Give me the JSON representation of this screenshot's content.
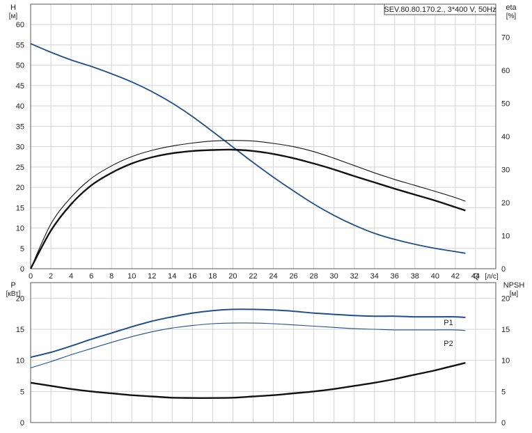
{
  "chart_data": [
    {
      "type": "line",
      "title": "SEV.80.80.170.2., 3*400 V, 50Hz",
      "xlabel": "Q",
      "xunit": "[л/с]",
      "ylabel": "H",
      "yunit": "[м]",
      "y2label": "eta",
      "y2unit": "[%]",
      "xlim": [
        0,
        46
      ],
      "ylim": [
        0,
        65
      ],
      "y2lim": [
        0,
        80
      ],
      "xticks": [
        0,
        2,
        4,
        6,
        8,
        10,
        12,
        14,
        16,
        18,
        20,
        22,
        24,
        26,
        28,
        30,
        32,
        34,
        36,
        38,
        40,
        42,
        44
      ],
      "yticks": [
        0,
        5,
        10,
        15,
        20,
        25,
        30,
        35,
        40,
        45,
        50,
        55,
        60
      ],
      "y2ticks": [
        0,
        10,
        20,
        30,
        40,
        50,
        60,
        70
      ],
      "grid": true,
      "series": [
        {
          "color": "#1f4e8c",
          "axis": "left",
          "x": [
            0,
            2,
            4,
            6,
            8,
            10,
            12,
            14,
            16,
            18,
            20,
            22,
            24,
            26,
            28,
            30,
            32,
            34,
            36,
            38,
            40,
            42,
            43
          ],
          "y": [
            55.3,
            53.2,
            51.3,
            49.7,
            47.9,
            45.9,
            43.5,
            40.7,
            37.4,
            33.7,
            29.9,
            26.1,
            22.5,
            19.1,
            15.9,
            13.1,
            10.7,
            8.7,
            7.2,
            6.0,
            5.0,
            4.2,
            3.8
          ]
        },
        {
          "color": "#111111",
          "axis": "right",
          "x": [
            0,
            2,
            4,
            6,
            8,
            10,
            12,
            14,
            16,
            18,
            20,
            22,
            24,
            26,
            28,
            30,
            32,
            34,
            36,
            38,
            40,
            42,
            43
          ],
          "y": [
            0,
            11.5,
            19.5,
            25.2,
            29.0,
            31.8,
            33.7,
            34.9,
            35.6,
            35.9,
            36.0,
            35.6,
            34.7,
            33.4,
            31.8,
            30.0,
            28.0,
            26.1,
            24.2,
            22.4,
            20.6,
            18.6,
            17.6
          ]
        },
        {
          "color": "#111111",
          "axis": "right",
          "x": [
            0,
            2,
            4,
            6,
            8,
            10,
            12,
            14,
            16,
            18,
            20,
            22,
            24,
            26,
            28,
            30,
            32,
            34,
            36,
            38,
            40,
            42,
            43
          ],
          "y": [
            0,
            13.5,
            21.6,
            27.3,
            31.1,
            33.9,
            35.8,
            37.1,
            38.0,
            38.6,
            38.8,
            38.6,
            37.9,
            36.9,
            35.4,
            33.4,
            31.2,
            29.0,
            27.0,
            25.2,
            23.4,
            21.5,
            20.4
          ]
        }
      ]
    },
    {
      "type": "line",
      "xlim": [
        0,
        46
      ],
      "ylabel": "P",
      "yunit": "[кВт]",
      "y2label": "NPSH",
      "y2unit": "[м]",
      "ylim": [
        0,
        22.5
      ],
      "y2lim": [
        0,
        22.5
      ],
      "yticks": [
        0,
        5,
        10,
        15,
        20
      ],
      "y2ticks": [
        0,
        5,
        10,
        15,
        20
      ],
      "grid": true,
      "series": [
        {
          "name": "P1",
          "color": "#1f4e8c",
          "axis": "left",
          "x": [
            0,
            2,
            4,
            6,
            8,
            10,
            12,
            14,
            16,
            18,
            20,
            22,
            24,
            26,
            28,
            30,
            32,
            34,
            36,
            38,
            40,
            42,
            43
          ],
          "y": [
            10.5,
            11.3,
            12.3,
            13.4,
            14.4,
            15.4,
            16.3,
            17.0,
            17.6,
            18.0,
            18.2,
            18.2,
            18.1,
            17.9,
            17.6,
            17.4,
            17.2,
            17.1,
            17.1,
            17.0,
            17.0,
            17.0,
            16.9
          ]
        },
        {
          "name": "P2",
          "color": "#1f4e8c",
          "axis": "left",
          "x": [
            0,
            2,
            4,
            6,
            8,
            10,
            12,
            14,
            16,
            18,
            20,
            22,
            24,
            26,
            28,
            30,
            32,
            34,
            36,
            38,
            40,
            42,
            43
          ],
          "y": [
            8.8,
            9.8,
            10.9,
            11.9,
            12.9,
            13.8,
            14.6,
            15.2,
            15.6,
            15.9,
            16.0,
            16.0,
            15.9,
            15.7,
            15.5,
            15.3,
            15.1,
            15.0,
            14.9,
            14.9,
            14.9,
            14.9,
            14.8
          ]
        },
        {
          "color": "#111111",
          "axis": "right",
          "x": [
            0,
            2,
            4,
            6,
            8,
            10,
            12,
            14,
            16,
            18,
            20,
            22,
            24,
            26,
            28,
            30,
            32,
            34,
            36,
            38,
            40,
            42,
            43
          ],
          "y": [
            6.4,
            5.9,
            5.4,
            5.0,
            4.7,
            4.4,
            4.2,
            4.0,
            3.95,
            3.95,
            4.0,
            4.2,
            4.4,
            4.7,
            5.0,
            5.4,
            5.9,
            6.4,
            7.0,
            7.7,
            8.4,
            9.2,
            9.6
          ]
        }
      ]
    }
  ]
}
